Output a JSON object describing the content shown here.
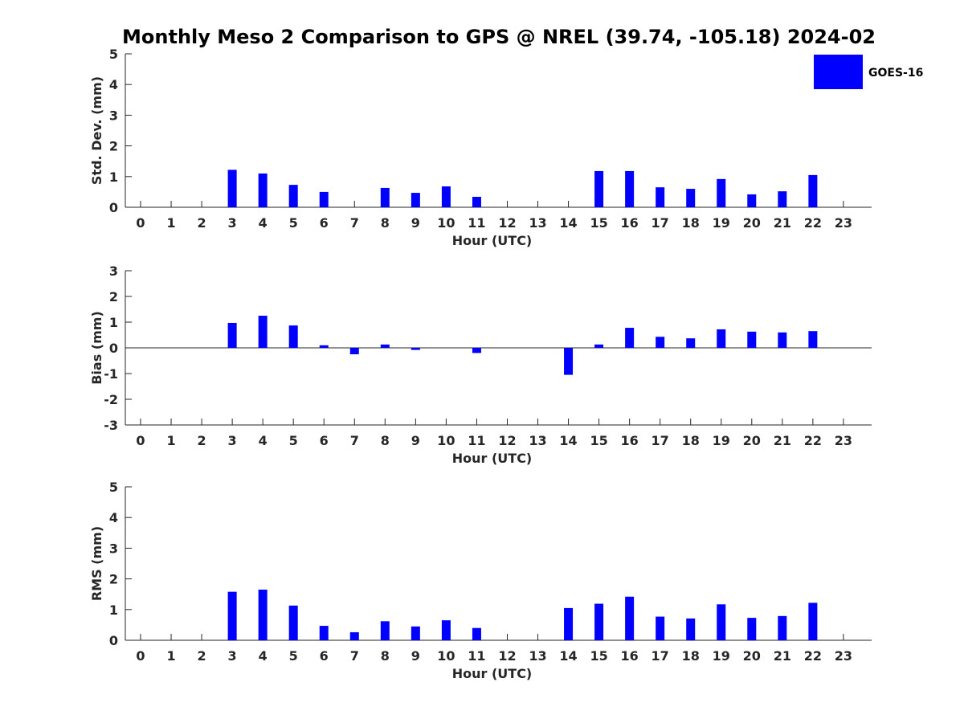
{
  "chart_data": {
    "title": "Monthly Meso 2 Comparison to GPS @ NREL (39.74, -105.18) 2024-02",
    "legend": {
      "label": "GOES-16",
      "position": "top-right",
      "color": "#0000ff"
    },
    "series_color": "#0000ff",
    "panels": [
      {
        "type": "bar",
        "ylabel": "Std. Dev. (mm)",
        "xlabel": "Hour (UTC)",
        "ylim": [
          0,
          5
        ],
        "yticks": [
          "0",
          "1",
          "2",
          "3",
          "4",
          "5"
        ],
        "categories": [
          "0",
          "1",
          "2",
          "3",
          "4",
          "5",
          "6",
          "7",
          "8",
          "9",
          "10",
          "11",
          "12",
          "13",
          "14",
          "15",
          "16",
          "17",
          "18",
          "19",
          "20",
          "21",
          "22",
          "23"
        ],
        "series": [
          {
            "name": "GOES-16",
            "values": [
              null,
              null,
              null,
              1.22,
              1.1,
              0.73,
              0.5,
              null,
              0.63,
              0.47,
              0.68,
              0.34,
              null,
              null,
              null,
              1.18,
              1.18,
              0.65,
              0.6,
              0.92,
              0.42,
              0.52,
              1.05,
              null
            ]
          }
        ]
      },
      {
        "type": "bar",
        "ylabel": "Bias (mm)",
        "xlabel": "Hour (UTC)",
        "ylim": [
          -3,
          3
        ],
        "yticks": [
          "-3",
          "-2",
          "-1",
          "0",
          "1",
          "2",
          "3"
        ],
        "categories": [
          "0",
          "1",
          "2",
          "3",
          "4",
          "5",
          "6",
          "7",
          "8",
          "9",
          "10",
          "11",
          "12",
          "13",
          "14",
          "15",
          "16",
          "17",
          "18",
          "19",
          "20",
          "21",
          "22",
          "23"
        ],
        "series": [
          {
            "name": "GOES-16",
            "values": [
              null,
              null,
              null,
              0.97,
              1.25,
              0.87,
              0.1,
              -0.25,
              0.13,
              -0.08,
              null,
              -0.2,
              null,
              null,
              -1.05,
              0.13,
              0.78,
              0.43,
              0.37,
              0.72,
              0.63,
              0.6,
              0.65,
              null
            ]
          }
        ]
      },
      {
        "type": "bar",
        "ylabel": "RMS (mm)",
        "xlabel": "Hour (UTC)",
        "ylim": [
          0,
          5
        ],
        "yticks": [
          "0",
          "1",
          "2",
          "3",
          "4",
          "5"
        ],
        "categories": [
          "0",
          "1",
          "2",
          "3",
          "4",
          "5",
          "6",
          "7",
          "8",
          "9",
          "10",
          "11",
          "12",
          "13",
          "14",
          "15",
          "16",
          "17",
          "18",
          "19",
          "20",
          "21",
          "22",
          "23"
        ],
        "series": [
          {
            "name": "GOES-16",
            "values": [
              null,
              null,
              null,
              1.58,
              1.65,
              1.13,
              0.47,
              0.26,
              0.62,
              0.45,
              0.65,
              0.4,
              null,
              null,
              1.05,
              1.19,
              1.42,
              0.77,
              0.71,
              1.17,
              0.73,
              0.79,
              1.22,
              null
            ]
          }
        ]
      }
    ]
  }
}
